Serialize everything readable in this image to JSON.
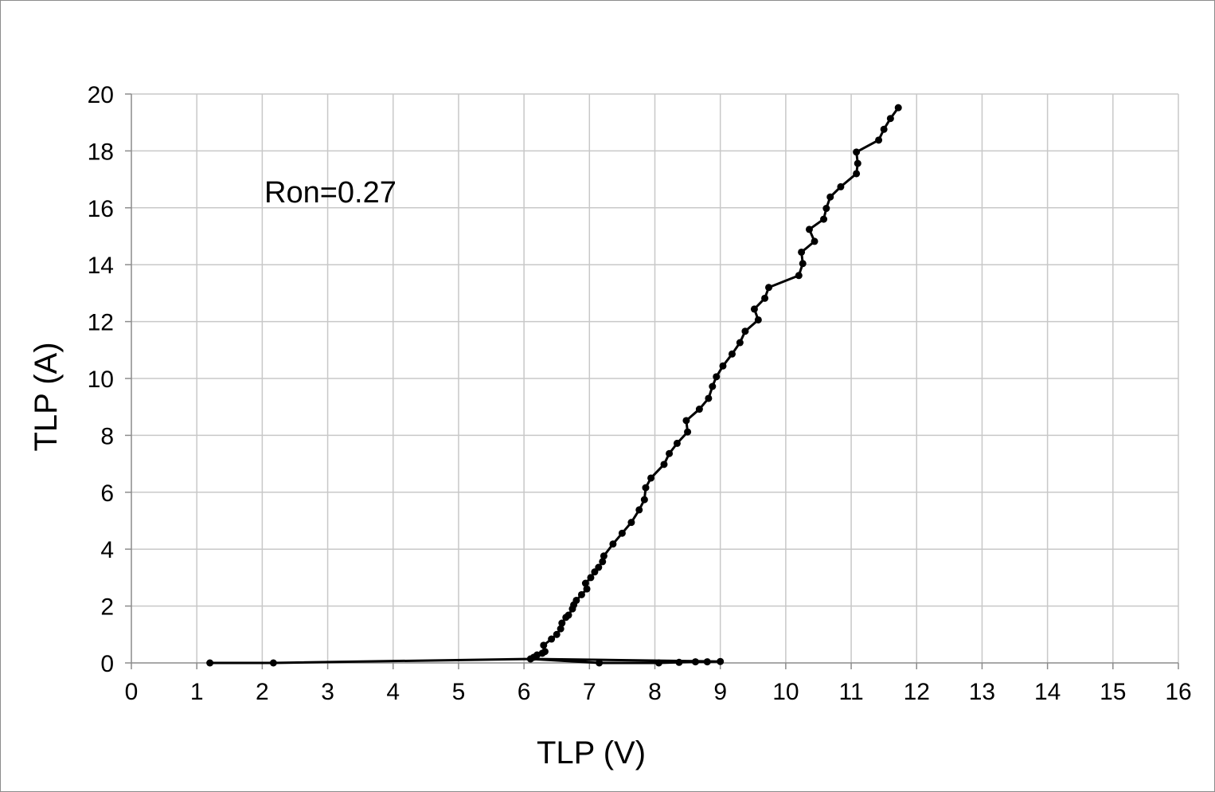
{
  "chart_data": {
    "type": "scatter",
    "xlabel": "TLP (V)",
    "ylabel": "TLP (A)",
    "xlim": [
      0,
      16
    ],
    "ylim": [
      0,
      20
    ],
    "xticks": [
      0,
      1,
      2,
      3,
      4,
      5,
      6,
      7,
      8,
      9,
      10,
      11,
      12,
      13,
      14,
      15,
      16
    ],
    "yticks": [
      0,
      2,
      4,
      6,
      8,
      10,
      12,
      14,
      16,
      18,
      20
    ],
    "grid": true,
    "annotation": "Ron=0.27",
    "line_color": "#000000",
    "series": [
      {
        "points": [
          [
            1.2,
            0.0
          ],
          [
            2.17,
            0.0
          ],
          [
            6.1,
            0.14
          ],
          [
            7.15,
            0.0
          ],
          [
            8.06,
            0.0
          ],
          [
            8.37,
            0.02
          ],
          [
            8.62,
            0.04
          ],
          [
            8.8,
            0.04
          ],
          [
            9.0,
            0.05
          ],
          [
            6.1,
            0.14
          ],
          [
            6.15,
            0.2
          ],
          [
            6.2,
            0.28
          ],
          [
            6.28,
            0.34
          ],
          [
            6.32,
            0.4
          ],
          [
            6.3,
            0.62
          ],
          [
            6.42,
            0.84
          ],
          [
            6.5,
            1.0
          ],
          [
            6.56,
            1.2
          ],
          [
            6.58,
            1.4
          ],
          [
            6.64,
            1.6
          ],
          [
            6.68,
            1.68
          ],
          [
            6.74,
            1.9
          ],
          [
            6.76,
            2.04
          ],
          [
            6.8,
            2.2
          ],
          [
            6.88,
            2.4
          ],
          [
            6.96,
            2.6
          ],
          [
            6.94,
            2.8
          ],
          [
            7.02,
            3.0
          ],
          [
            7.08,
            3.2
          ],
          [
            7.14,
            3.36
          ],
          [
            7.2,
            3.56
          ],
          [
            7.22,
            3.76
          ],
          [
            7.36,
            4.18
          ],
          [
            7.5,
            4.56
          ],
          [
            7.64,
            4.94
          ],
          [
            7.76,
            5.38
          ],
          [
            7.84,
            5.74
          ],
          [
            7.86,
            6.16
          ],
          [
            7.94,
            6.5
          ],
          [
            8.14,
            6.98
          ],
          [
            8.22,
            7.36
          ],
          [
            8.34,
            7.72
          ],
          [
            8.5,
            8.12
          ],
          [
            8.48,
            8.52
          ],
          [
            8.68,
            8.92
          ],
          [
            8.82,
            9.3
          ],
          [
            8.88,
            9.72
          ],
          [
            8.94,
            10.06
          ],
          [
            9.04,
            10.44
          ],
          [
            9.18,
            10.86
          ],
          [
            9.3,
            11.26
          ],
          [
            9.38,
            11.66
          ],
          [
            9.58,
            12.06
          ],
          [
            9.52,
            12.44
          ],
          [
            9.68,
            12.82
          ],
          [
            9.74,
            13.2
          ],
          [
            10.2,
            13.62
          ],
          [
            10.26,
            14.04
          ],
          [
            10.24,
            14.44
          ],
          [
            10.44,
            14.82
          ],
          [
            10.36,
            15.24
          ],
          [
            10.58,
            15.6
          ],
          [
            10.62,
            15.98
          ],
          [
            10.68,
            16.38
          ],
          [
            10.84,
            16.74
          ],
          [
            11.08,
            17.2
          ],
          [
            11.1,
            17.56
          ],
          [
            11.08,
            17.96
          ],
          [
            11.42,
            18.38
          ],
          [
            11.5,
            18.76
          ],
          [
            11.6,
            19.14
          ],
          [
            11.72,
            19.52
          ]
        ]
      }
    ]
  }
}
